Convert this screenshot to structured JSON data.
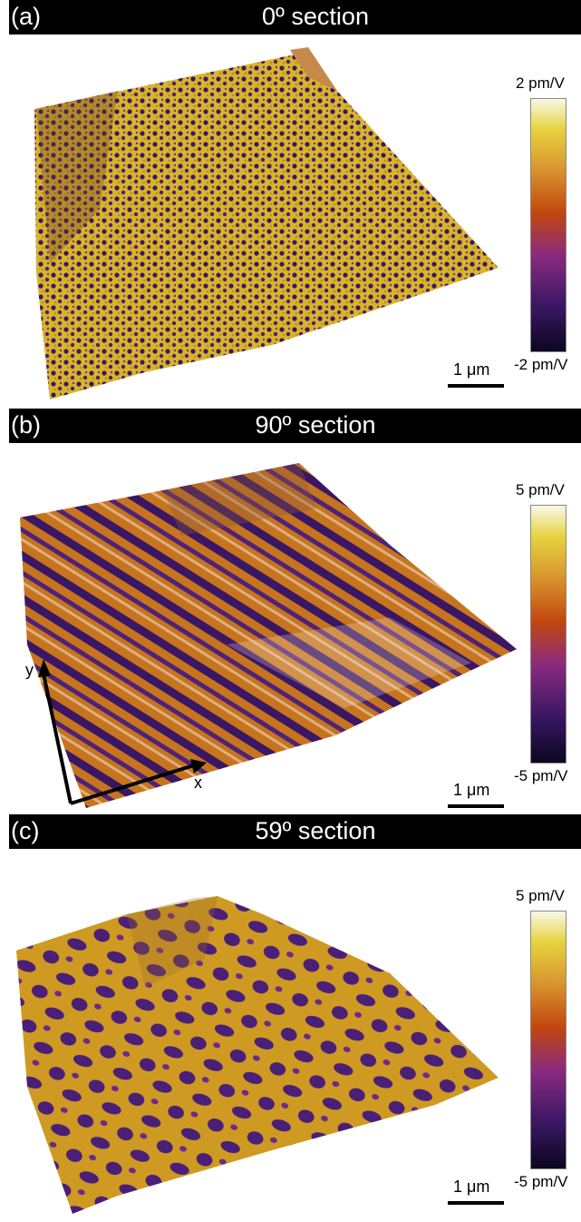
{
  "panels": [
    {
      "label": "(a)",
      "title": "0º section",
      "cbar_max": "2 pm/V",
      "cbar_min": "-2 pm/V",
      "scale_bar": "1 μm"
    },
    {
      "label": "(b)",
      "title": "90º section",
      "cbar_max": "5 pm/V",
      "cbar_min": "-5 pm/V",
      "scale_bar": "1 μm"
    },
    {
      "label": "(c)",
      "title": "59º section",
      "cbar_max": "5 pm/V",
      "cbar_min": "-5 pm/V",
      "scale_bar": "1 μm"
    }
  ],
  "axes": {
    "x": "x",
    "y": "y"
  },
  "colormap": [
    "#0b0620",
    "#3a1764",
    "#8a2a7e",
    "#c2470e",
    "#d8952e",
    "#e6d33f",
    "#f8f8e8"
  ]
}
